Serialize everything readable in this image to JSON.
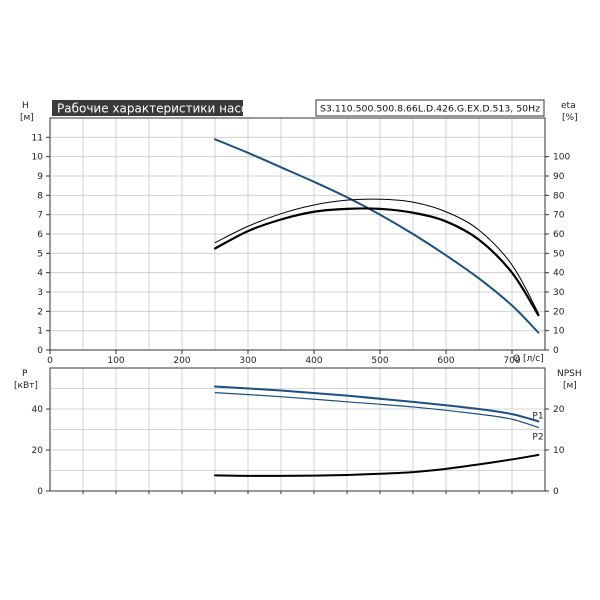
{
  "title": "Рабочие характеристики насоса",
  "model": "S3.110.500.500.8.66L.D.426.G.EX.D.513, 50Hz",
  "colors": {
    "blue": "#1c4f82",
    "black": "#000000",
    "title_bg": "#3a3a3a"
  },
  "chart_data": [
    {
      "type": "line",
      "name": "top",
      "xlabel": "Q [л/с]",
      "ylabel": "H",
      "ylabel_unit": "[м]",
      "y2label": "eta",
      "y2label_unit": "[%]",
      "xlim": [
        0,
        750
      ],
      "ylim": [
        0,
        12
      ],
      "y2lim": [
        0,
        120
      ],
      "x_ticks": [
        0,
        100,
        200,
        300,
        400,
        500,
        600,
        700
      ],
      "y_ticks": [
        0,
        1,
        2,
        3,
        4,
        5,
        6,
        7,
        8,
        9,
        10,
        11
      ],
      "y2_ticks": [
        0,
        10,
        20,
        30,
        40,
        50,
        60,
        70,
        80,
        90,
        100
      ],
      "grid": true,
      "series": [
        {
          "axis": "y",
          "color": "#1c4f82",
          "width": 2,
          "x": [
            250,
            300,
            350,
            400,
            450,
            500,
            550,
            600,
            650,
            700,
            740
          ],
          "y": [
            10.9,
            10.2,
            9.45,
            8.7,
            7.9,
            7.0,
            6.0,
            4.9,
            3.7,
            2.3,
            0.9
          ]
        },
        {
          "axis": "y2",
          "color": "#000000",
          "width": 1,
          "x": [
            250,
            300,
            350,
            400,
            450,
            500,
            550,
            600,
            650,
            700,
            740
          ],
          "y": [
            55.5,
            64,
            70.5,
            75,
            77.5,
            78,
            76.5,
            71.5,
            62,
            44,
            19
          ]
        },
        {
          "axis": "y2",
          "color": "#000000",
          "width": 2.2,
          "x": [
            250,
            300,
            350,
            400,
            450,
            500,
            550,
            600,
            650,
            700,
            740
          ],
          "y": [
            52.5,
            61.5,
            67.5,
            71.5,
            73,
            73,
            71,
            66.5,
            57,
            40,
            18
          ]
        }
      ]
    },
    {
      "type": "line",
      "name": "bottom",
      "xlabel": "",
      "ylabel": "P",
      "ylabel_unit": "[кВт]",
      "y2label": "NPSH",
      "y2label_unit": "[м]",
      "xlim": [
        0,
        750
      ],
      "ylim": [
        0,
        60
      ],
      "y2lim": [
        0,
        30
      ],
      "y_ticks": [
        0,
        20,
        40
      ],
      "y2_ticks": [
        0,
        10,
        20
      ],
      "grid": true,
      "series": [
        {
          "name": "P1",
          "axis": "y",
          "color": "#1c4f82",
          "width": 2,
          "x": [
            250,
            350,
            450,
            550,
            650,
            700,
            740
          ],
          "y": [
            51,
            49,
            46.5,
            43.5,
            40,
            37.5,
            34
          ]
        },
        {
          "name": "P2",
          "axis": "y",
          "color": "#1c4f82",
          "width": 1.2,
          "x": [
            250,
            350,
            450,
            550,
            650,
            700,
            740
          ],
          "y": [
            48,
            46,
            43.5,
            41,
            37.5,
            35,
            31
          ]
        },
        {
          "axis": "y2",
          "color": "#000000",
          "width": 2,
          "x": [
            250,
            300,
            350,
            400,
            450,
            500,
            550,
            600,
            650,
            700,
            740
          ],
          "y": [
            3.8,
            3.7,
            3.7,
            3.75,
            3.9,
            4.2,
            4.6,
            5.4,
            6.5,
            7.7,
            8.8
          ]
        }
      ]
    }
  ]
}
